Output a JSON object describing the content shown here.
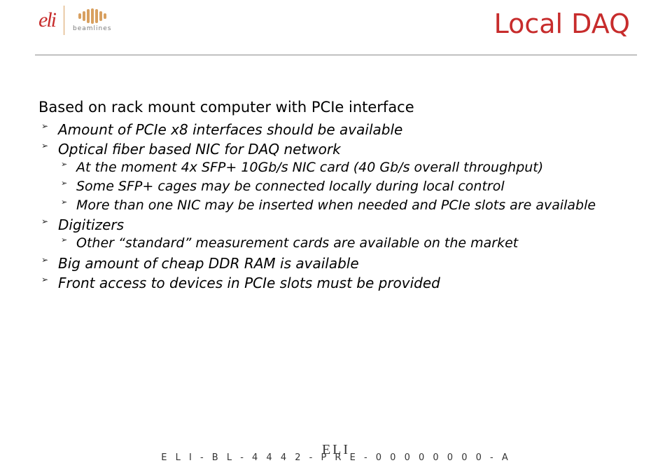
{
  "colors": {
    "accent_red": "#c72c2c",
    "logo_amber": "#d8a060",
    "rule_gray": "#8a8a8a",
    "text": "#000000",
    "background": "#ffffff"
  },
  "typography": {
    "body_fontsize_pt": 16,
    "title_fontsize_pt": 29,
    "footer_code_fontsize_pt": 10,
    "font_family": "DejaVu Sans / Verdana",
    "bullet_style": "italic"
  },
  "header": {
    "logo_text": "eli",
    "beamlines_label": "beamlines",
    "title": "Local DAQ"
  },
  "content": {
    "lead": "Based on rack mount computer with PCIe interface",
    "bullets": [
      {
        "text": "Amount of PCIe x8 interfaces should be available",
        "children": []
      },
      {
        "text": "Optical fiber based NIC for DAQ network",
        "children": [
          {
            "text": "At the moment 4x SFP+ 10Gb/s NIC card (40 Gb/s overall throughput)"
          },
          {
            "text": "Some SFP+ cages may be connected locally during local control"
          },
          {
            "text": "More than one NIC may be inserted when needed and PCIe slots are available"
          }
        ]
      },
      {
        "text": "Digitizers",
        "children": [
          {
            "text": "Other “standard” measurement cards are available on the market"
          }
        ]
      },
      {
        "text": "Big amount of cheap DDR RAM is available",
        "children": []
      },
      {
        "text": "Front access to devices in PCIe slots must be provided",
        "children": []
      }
    ]
  },
  "footer": {
    "brand": "ELI",
    "code": "E L I - B L - 4 4 4 2 - P R E - 0 0 0 0 0 0 0 0 - A"
  }
}
